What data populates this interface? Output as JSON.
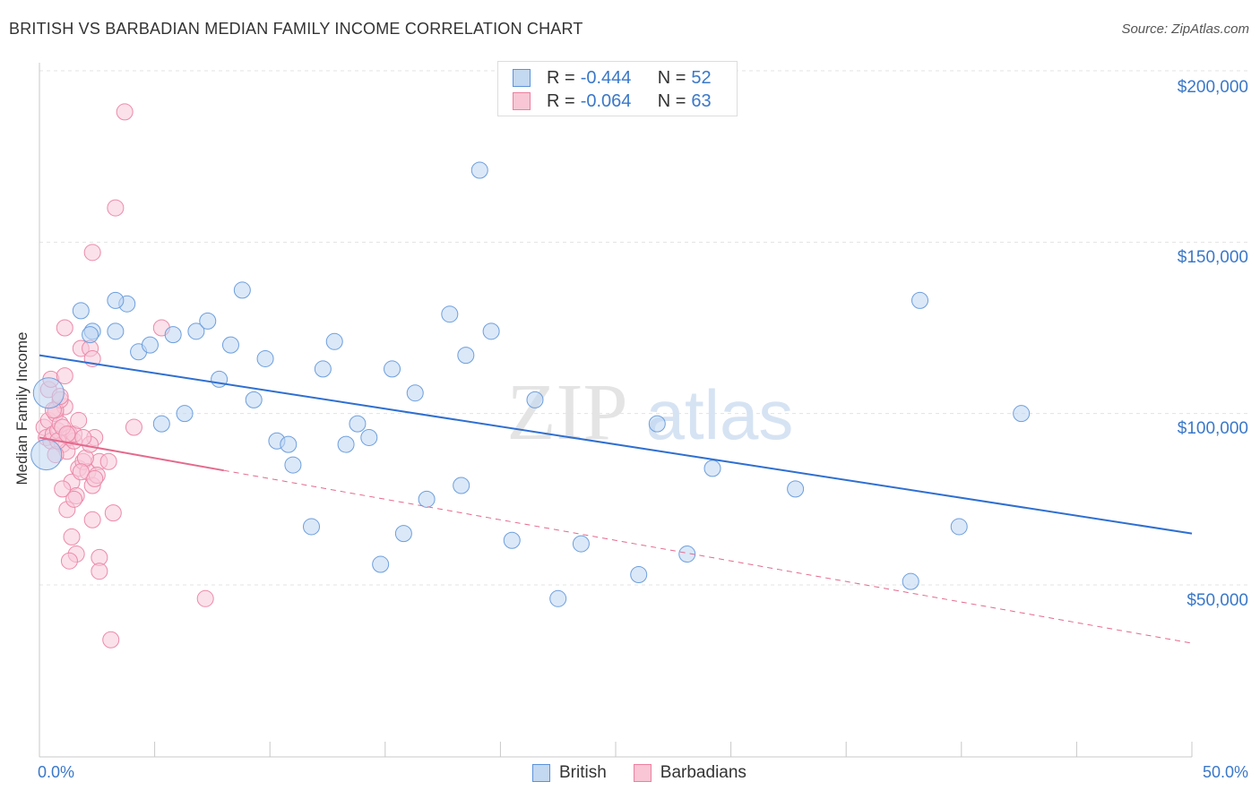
{
  "title": "BRITISH VS BARBADIAN MEDIAN FAMILY INCOME CORRELATION CHART",
  "source": "Source: ZipAtlas.com",
  "colors": {
    "british": "#5b93d9",
    "british_line": "#2f6fd0",
    "barbadian": "#ec7fa0",
    "barbadian_line": "#e46a8d",
    "axis_text": "#3a78c9"
  },
  "legend_top": {
    "british": {
      "r_label": "R =",
      "r_value": "-0.444",
      "n_label": "N =",
      "n_value": "52"
    },
    "barbadians": {
      "r_label": "R =",
      "r_value": "-0.064",
      "n_label": "N =",
      "n_value": "63"
    }
  },
  "legend_bottom": {
    "british": "British",
    "barbadians": "Barbadians"
  },
  "chart_data": {
    "type": "scatter",
    "title": "BRITISH VS BARBADIAN MEDIAN FAMILY INCOME CORRELATION CHART",
    "xlabel": "",
    "ylabel": "Median Family Income",
    "xlim": [
      0,
      50
    ],
    "ylim": [
      0,
      210000
    ],
    "x_tick_labels": {
      "min": "0.0%",
      "max": "50.0%"
    },
    "y_ticks": [
      {
        "value": 50000,
        "label": "$50,000"
      },
      {
        "value": 100000,
        "label": "$100,000"
      },
      {
        "value": 150000,
        "label": "$150,000"
      },
      {
        "value": 200000,
        "label": "$200,000"
      }
    ],
    "watermark": {
      "zip": "ZIP",
      "atlas": "atlas"
    },
    "series": [
      {
        "name": "British",
        "r": -0.444,
        "n": 52,
        "trend": {
          "x0": 0,
          "y0": 117000,
          "x1": 50,
          "y1": 65000,
          "solid_until": 50
        },
        "points": [
          [
            0.4,
            106000,
            "big"
          ],
          [
            0.3,
            88000,
            "big"
          ],
          [
            1.8,
            130000
          ],
          [
            2.3,
            124000
          ],
          [
            3.8,
            132000
          ],
          [
            3.3,
            133000
          ],
          [
            3.3,
            124000
          ],
          [
            4.3,
            118000
          ],
          [
            4.8,
            120000
          ],
          [
            5.3,
            97000
          ],
          [
            5.8,
            123000
          ],
          [
            6.3,
            100000
          ],
          [
            6.8,
            124000
          ],
          [
            7.3,
            127000
          ],
          [
            7.8,
            110000
          ],
          [
            8.3,
            120000
          ],
          [
            8.8,
            136000
          ],
          [
            9.3,
            104000
          ],
          [
            9.8,
            116000
          ],
          [
            10.3,
            92000
          ],
          [
            10.8,
            91000
          ],
          [
            11.0,
            85000
          ],
          [
            11.8,
            67000
          ],
          [
            12.3,
            113000
          ],
          [
            12.8,
            121000
          ],
          [
            13.3,
            91000
          ],
          [
            13.8,
            97000
          ],
          [
            14.3,
            93000
          ],
          [
            14.8,
            56000
          ],
          [
            15.3,
            113000
          ],
          [
            15.8,
            65000
          ],
          [
            16.3,
            106000
          ],
          [
            16.8,
            75000
          ],
          [
            17.8,
            129000
          ],
          [
            18.3,
            79000
          ],
          [
            18.5,
            117000
          ],
          [
            19.1,
            171000
          ],
          [
            19.6,
            124000
          ],
          [
            20.5,
            63000
          ],
          [
            21.5,
            104000
          ],
          [
            22.5,
            46000
          ],
          [
            23.5,
            62000
          ],
          [
            26.0,
            53000
          ],
          [
            26.8,
            97000
          ],
          [
            28.1,
            59000
          ],
          [
            29.2,
            84000
          ],
          [
            32.8,
            78000
          ],
          [
            37.8,
            51000
          ],
          [
            39.9,
            67000
          ],
          [
            42.6,
            100000
          ],
          [
            38.2,
            133000
          ],
          [
            2.2,
            123000
          ]
        ]
      },
      {
        "name": "Barbadians",
        "r": -0.064,
        "n": 63,
        "trend": {
          "x0": 0,
          "y0": 93000,
          "x1": 50,
          "y1": 33000,
          "solid_until": 8
        },
        "points": [
          [
            0.2,
            96000
          ],
          [
            0.3,
            93000
          ],
          [
            0.4,
            98000
          ],
          [
            0.5,
            92000
          ],
          [
            0.6,
            94000
          ],
          [
            0.7,
            100000
          ],
          [
            0.8,
            95000
          ],
          [
            0.9,
            97000
          ],
          [
            1.0,
            91000
          ],
          [
            1.1,
            102000
          ],
          [
            1.2,
            89000
          ],
          [
            1.3,
            94000
          ],
          [
            0.4,
            107000
          ],
          [
            0.5,
            110000
          ],
          [
            0.7,
            101000
          ],
          [
            0.9,
            104000
          ],
          [
            1.1,
            111000
          ],
          [
            1.3,
            93000
          ],
          [
            1.5,
            92000
          ],
          [
            1.7,
            84000
          ],
          [
            1.9,
            86000
          ],
          [
            2.1,
            83000
          ],
          [
            2.3,
            79000
          ],
          [
            1.4,
            80000
          ],
          [
            1.6,
            76000
          ],
          [
            1.2,
            72000
          ],
          [
            1.4,
            64000
          ],
          [
            1.6,
            59000
          ],
          [
            1.3,
            57000
          ],
          [
            2.6,
            58000
          ],
          [
            2.6,
            54000
          ],
          [
            2.3,
            69000
          ],
          [
            3.2,
            71000
          ],
          [
            1.8,
            119000
          ],
          [
            1.1,
            125000
          ],
          [
            2.2,
            119000
          ],
          [
            2.3,
            116000
          ],
          [
            3.3,
            160000
          ],
          [
            3.7,
            188000
          ],
          [
            2.3,
            147000
          ],
          [
            3.1,
            34000
          ],
          [
            5.3,
            125000
          ],
          [
            7.2,
            46000
          ],
          [
            4.1,
            96000
          ],
          [
            2.4,
            93000
          ],
          [
            2.6,
            86000
          ],
          [
            2.0,
            87000
          ],
          [
            1.0,
            78000
          ],
          [
            0.7,
            88000
          ],
          [
            1.8,
            83000
          ],
          [
            1.5,
            75000
          ],
          [
            2.2,
            91000
          ],
          [
            0.6,
            101000
          ],
          [
            0.8,
            92000
          ],
          [
            1.5,
            94000
          ],
          [
            1.0,
            96000
          ],
          [
            2.5,
            82000
          ],
          [
            1.7,
            98000
          ],
          [
            1.2,
            94000
          ],
          [
            1.9,
            93000
          ],
          [
            2.4,
            81000
          ],
          [
            0.9,
            105000
          ],
          [
            3.0,
            86000
          ]
        ]
      }
    ]
  }
}
